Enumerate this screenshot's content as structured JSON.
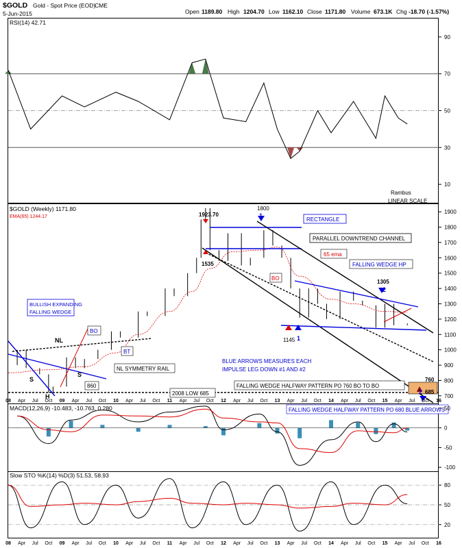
{
  "header": {
    "symbol": "$GOLD",
    "name": "Gold - Spot Price (EOD)",
    "exchange": "CME",
    "date": "5-Jun-2015",
    "open_label": "Open",
    "open": "1189.80",
    "high_label": "High",
    "high": "1204.70",
    "low_label": "Low",
    "low": "1162.10",
    "close_label": "Close",
    "close": "1171.80",
    "volume_label": "Volume",
    "volume": "673.1K",
    "chg_label": "Chg",
    "chg": "-18.70 (-1.57%)"
  },
  "brand": {
    "line1": "Rambus",
    "line2": "LINEAR SCALE"
  },
  "colors": {
    "trendline_blue": "#0000dd",
    "annotation_red": "#dd0000",
    "label_blue": "#0000cc",
    "rsi_fill": "#4a7a4a",
    "rsi_low_fill": "#a64b4b",
    "macd_hist": "#3a8fb7",
    "ema_red": "#dd0000",
    "measure_box": "#f0b070"
  },
  "chart_data": [
    {
      "panel": "rsi",
      "type": "line",
      "title": "RSI(14) 42.71",
      "ylim": [
        0,
        100
      ],
      "yticks": [
        10,
        30,
        50,
        70,
        90
      ],
      "levels": [
        30,
        50,
        70
      ],
      "series": [
        {
          "name": "RSI(14)",
          "x": [
            "2008-01",
            "2008-06",
            "2009-01",
            "2009-06",
            "2010-01",
            "2010-06",
            "2011-01",
            "2011-06",
            "2011-09",
            "2012-01",
            "2012-06",
            "2012-10",
            "2013-01",
            "2013-04",
            "2013-06",
            "2013-10",
            "2014-01",
            "2014-06",
            "2014-11",
            "2015-01",
            "2015-04",
            "2015-06"
          ],
          "values": [
            72,
            40,
            58,
            52,
            60,
            55,
            45,
            76,
            78,
            46,
            44,
            65,
            40,
            24,
            28,
            50,
            38,
            55,
            35,
            58,
            46,
            42.71
          ]
        }
      ]
    },
    {
      "panel": "price",
      "type": "candlestick",
      "title": "$GOLD (Weekly) 1171.80",
      "scale": "linear",
      "ylim": [
        650,
        1950
      ],
      "yticks": [
        700,
        800,
        900,
        1000,
        1100,
        1200,
        1300,
        1400,
        1500,
        1600,
        1700,
        1800,
        1900
      ],
      "x_tick_labels": [
        "08",
        "Apr",
        "Jul",
        "Oct",
        "09",
        "Apr",
        "Jul",
        "Oct",
        "10",
        "Apr",
        "Jul",
        "Oct",
        "11",
        "Apr",
        "Jul",
        "Oct",
        "12",
        "Apr",
        "Jul",
        "Oct",
        "13",
        "Apr",
        "Jul",
        "Oct",
        "14",
        "Apr",
        "Jul",
        "Oct",
        "15",
        "Apr",
        "Jul",
        "Oct",
        "16"
      ],
      "series": [
        {
          "name": "$GOLD",
          "x": [
            "2008-01",
            "2008-03",
            "2008-05",
            "2008-08",
            "2008-10",
            "2008-11",
            "2009-02",
            "2009-04",
            "2009-06",
            "2009-09",
            "2009-12",
            "2010-02",
            "2010-06",
            "2010-08",
            "2010-12",
            "2011-02",
            "2011-05",
            "2011-07",
            "2011-08",
            "2011-09",
            "2011-10",
            "2011-12",
            "2012-02",
            "2012-05",
            "2012-07",
            "2012-10",
            "2012-12",
            "2013-02",
            "2013-04",
            "2013-06",
            "2013-08",
            "2013-10",
            "2013-12",
            "2014-03",
            "2014-06",
            "2014-08",
            "2014-11",
            "2015-01",
            "2015-03",
            "2015-06"
          ],
          "values": [
            900,
            1000,
            880,
            840,
            720,
            760,
            950,
            880,
            940,
            1000,
            1120,
            1080,
            1250,
            1220,
            1400,
            1350,
            1500,
            1600,
            1850,
            1923.7,
            1650,
            1580,
            1760,
            1550,
            1600,
            1780,
            1680,
            1600,
            1400,
            1210,
            1400,
            1300,
            1200,
            1380,
            1320,
            1290,
            1145,
            1300,
            1160,
            1171.8
          ]
        },
        {
          "name": "EMA(65) 1244.17",
          "x": [
            "2008-01",
            "2008-10",
            "2009-06",
            "2010-01",
            "2010-06",
            "2011-01",
            "2011-06",
            "2011-10",
            "2012-03",
            "2012-09",
            "2013-01",
            "2013-06",
            "2014-01",
            "2014-06",
            "2015-01",
            "2015-06"
          ],
          "values": [
            850,
            870,
            890,
            980,
            1100,
            1250,
            1380,
            1530,
            1640,
            1650,
            1670,
            1480,
            1330,
            1300,
            1250,
            1244.17
          ]
        }
      ]
    },
    {
      "panel": "macd",
      "type": "line",
      "title": "MACD(12,26,9) -10.483, -10.763, 0.280",
      "ylim": [
        -110,
        60
      ],
      "yticks": [
        -100,
        -50,
        0,
        50
      ],
      "series": [
        {
          "name": "MACD",
          "x": [
            "2008-03",
            "2008-10",
            "2009-03",
            "2009-10",
            "2010-06",
            "2011-01",
            "2011-09",
            "2012-01",
            "2012-09",
            "2013-01",
            "2013-06",
            "2014-01",
            "2014-07",
            "2014-11",
            "2015-03",
            "2015-06"
          ],
          "values": [
            30,
            -40,
            20,
            45,
            15,
            40,
            55,
            -5,
            35,
            -10,
            -95,
            -30,
            15,
            -35,
            10,
            -10.483
          ]
        }
      ]
    },
    {
      "panel": "sto",
      "type": "line",
      "title": "Slow STO %K(14) %D(3) 51.53, 58.93",
      "ylim": [
        0,
        100
      ],
      "yticks": [
        20,
        50,
        80
      ],
      "series": [
        {
          "name": "%K",
          "x": [
            "2008-01",
            "2008-06",
            "2009-01",
            "2009-06",
            "2010-01",
            "2010-06",
            "2011-01",
            "2011-06",
            "2012-01",
            "2012-06",
            "2013-01",
            "2013-06",
            "2014-01",
            "2014-06",
            "2015-01",
            "2015-06"
          ],
          "values": [
            80,
            15,
            85,
            20,
            80,
            30,
            90,
            15,
            85,
            20,
            80,
            10,
            85,
            20,
            80,
            51.53
          ]
        }
      ]
    }
  ],
  "annotations": {
    "top_price": "1923.70",
    "low_1535": "1535",
    "peak_1800": "1800",
    "low_1145": "1145",
    "peak_1305": "1305",
    "num_1": "1",
    "num_2": "2",
    "rectangle": "RECTANGLE",
    "parallel": "PARALLEL DOWNTREND CHANNEL",
    "ema65": "65 ema",
    "falling_wedge_hp": "FALLING WEDGE HP",
    "bo": "BO",
    "bt": "BT",
    "bullish_line1": "BULLISH EXPANDING",
    "bullish_line2": "FALLING WEDGE",
    "nl": "NL",
    "s": "S",
    "h": "H",
    "n860": "860",
    "nl_rail": "NL SYMMETRY RAIL",
    "low2008": "2008 LOW 685",
    "blue_arrows_1": "BLUE ARROWS MEASURES EACH",
    "blue_arrows_2": "IMPULSE LEG DOWN #1 AND #2",
    "fw_half_760": "FALLING WEDGE HALFWAY PATTERN PO 760 BO TO BO",
    "n760": "760",
    "n685": "685",
    "fw_half_680": "FALLING WEDGE HALFWAY PATTERN PO 680 BLUE ARROWS"
  }
}
